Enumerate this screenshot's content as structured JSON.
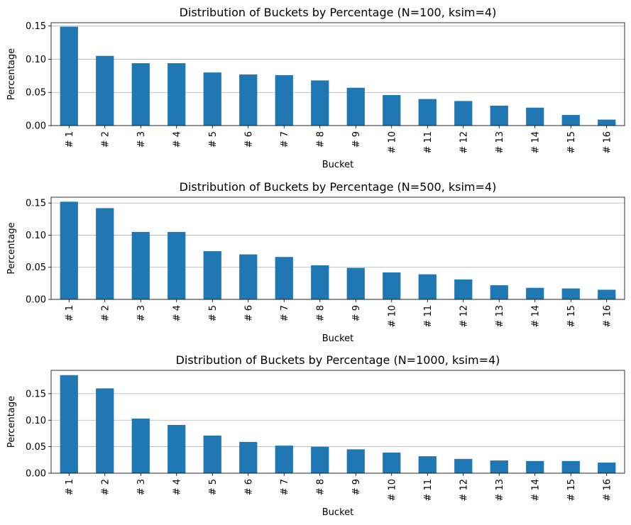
{
  "chart_data": [
    {
      "type": "bar",
      "title": "Distribution of Buckets by Percentage (N=100, ksim=4)",
      "xlabel": "Bucket",
      "ylabel": "Percentage",
      "categories": [
        "# 1",
        "# 2",
        "# 3",
        "# 4",
        "# 5",
        "# 6",
        "# 7",
        "# 8",
        "# 9",
        "# 10",
        "# 11",
        "# 12",
        "# 13",
        "# 14",
        "# 15",
        "# 16"
      ],
      "values": [
        0.149,
        0.105,
        0.094,
        0.094,
        0.08,
        0.077,
        0.076,
        0.068,
        0.057,
        0.046,
        0.04,
        0.037,
        0.03,
        0.027,
        0.016,
        0.009
      ],
      "ylim": [
        0,
        0.155
      ],
      "yticks": [
        "0.00",
        "0.05",
        "0.10",
        "0.15"
      ],
      "grid": "y",
      "bar_color": "#1f77b4"
    },
    {
      "type": "bar",
      "title": "Distribution of Buckets by Percentage (N=500, ksim=4)",
      "xlabel": "Bucket",
      "ylabel": "Percentage",
      "categories": [
        "# 1",
        "# 2",
        "# 3",
        "# 4",
        "# 5",
        "# 6",
        "# 7",
        "# 8",
        "# 9",
        "# 10",
        "# 11",
        "# 12",
        "# 13",
        "# 14",
        "# 15",
        "# 16"
      ],
      "values": [
        0.152,
        0.142,
        0.105,
        0.105,
        0.075,
        0.07,
        0.066,
        0.053,
        0.049,
        0.042,
        0.039,
        0.031,
        0.022,
        0.018,
        0.017,
        0.015
      ],
      "ylim": [
        0,
        0.159
      ],
      "yticks": [
        "0.00",
        "0.05",
        "0.10",
        "0.15"
      ],
      "grid": "y",
      "bar_color": "#1f77b4"
    },
    {
      "type": "bar",
      "title": "Distribution of Buckets by Percentage (N=1000, ksim=4)",
      "xlabel": "Bucket",
      "ylabel": "Percentage",
      "categories": [
        "# 1",
        "# 2",
        "# 3",
        "# 4",
        "# 5",
        "# 6",
        "# 7",
        "# 8",
        "# 9",
        "# 10",
        "# 11",
        "# 12",
        "# 13",
        "# 14",
        "# 15",
        "# 16"
      ],
      "values": [
        0.185,
        0.16,
        0.103,
        0.091,
        0.071,
        0.059,
        0.052,
        0.05,
        0.045,
        0.039,
        0.032,
        0.027,
        0.024,
        0.023,
        0.023,
        0.02
      ],
      "ylim": [
        0,
        0.194
      ],
      "yticks": [
        "0.00",
        "0.05",
        "0.10",
        "0.15"
      ],
      "grid": "y",
      "bar_color": "#1f77b4"
    }
  ]
}
